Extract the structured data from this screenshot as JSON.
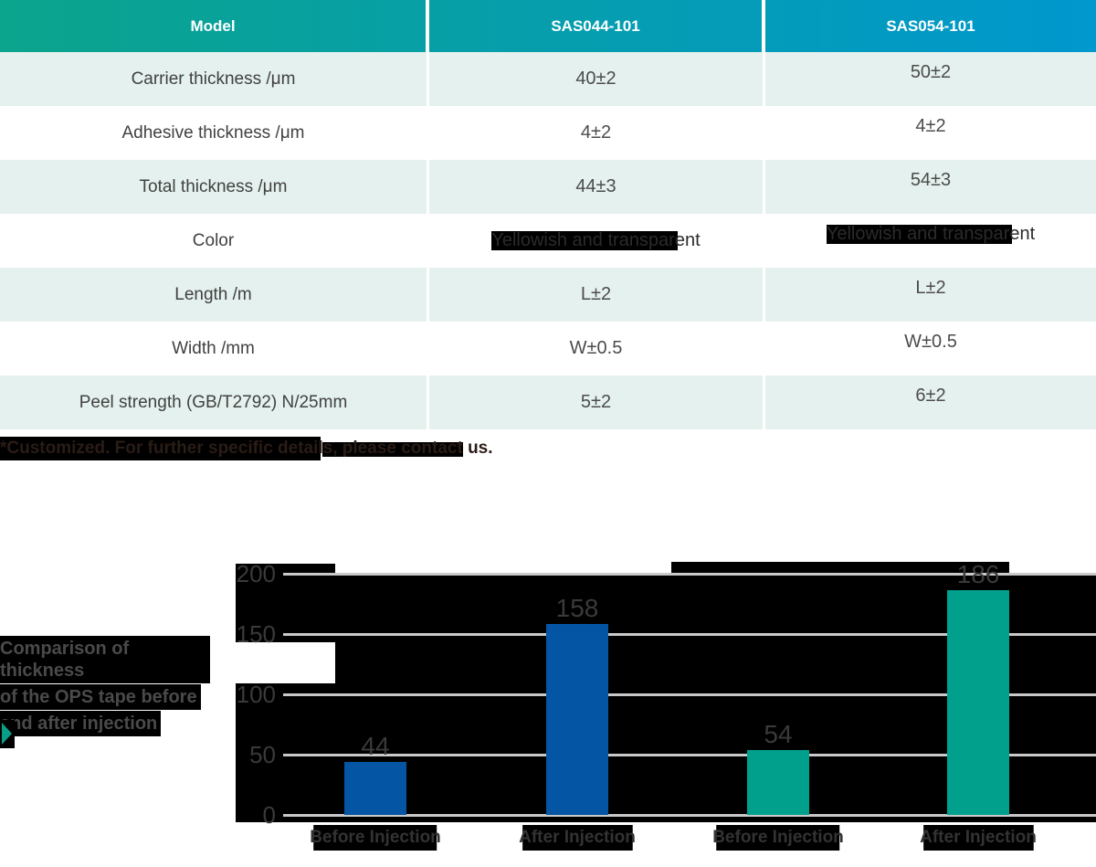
{
  "colors": {
    "header_gradient_start": "#0ba48c",
    "header_gradient_end": "#0098ce",
    "row_alt_bg": "#e5f1ee",
    "highlight_black": "#000000",
    "bar_blue": "#0455a4",
    "bar_teal": "#00a08c",
    "marker_teal": "#0a9d87",
    "gridline_gray": "#c9c9c9"
  },
  "table": {
    "header": [
      "Model",
      "SAS044-101",
      "SAS054-101"
    ],
    "rows": [
      {
        "label": "Carrier thickness /μm",
        "values": [
          "40±2",
          "50±2"
        ],
        "highlighted": false
      },
      {
        "label": "Adhesive thickness /μm",
        "values": [
          "4±2",
          "4±2"
        ],
        "highlighted": false
      },
      {
        "label": "Total thickness /μm",
        "values": [
          "44±3",
          "54±3"
        ],
        "highlighted": false
      },
      {
        "label": "Color",
        "values": [
          "Yellowish and transparent",
          "Yellowish and transparent"
        ],
        "highlighted": true
      },
      {
        "label": "Length /m",
        "values": [
          "L±2",
          "L±2"
        ],
        "highlighted": false
      },
      {
        "label": "Width /mm",
        "values": [
          "W±0.5",
          "W±0.5"
        ],
        "highlighted": false
      },
      {
        "label": "Peel strength (GB/T2792) N/25mm",
        "values": [
          "5±2",
          "6±2"
        ],
        "highlighted": false
      }
    ]
  },
  "footnote": "*Customized. For further specific details, please contact us.",
  "chart_data": {
    "type": "bar",
    "title": "Comparison of thickness of the OPS tape before and after injection",
    "title_lines": [
      "Comparison of thickness",
      "of the OPS tape before",
      "and after injection"
    ],
    "categories": [
      "Before Injection",
      "After Injection",
      "Before Injection",
      "After Injection"
    ],
    "bars": [
      {
        "category": "Before Injection",
        "value": 44,
        "color": "#0455a4"
      },
      {
        "category": "After Injection",
        "value": 158,
        "color": "#0455a4"
      },
      {
        "category": "Before Injection",
        "value": 54,
        "color": "#00a08c"
      },
      {
        "category": "After Injection",
        "value": 186,
        "color": "#00a08c"
      }
    ],
    "ylim": [
      0,
      200
    ],
    "yticks": [
      0,
      50,
      100,
      150,
      200
    ],
    "grid": true,
    "legend_position": "none"
  }
}
